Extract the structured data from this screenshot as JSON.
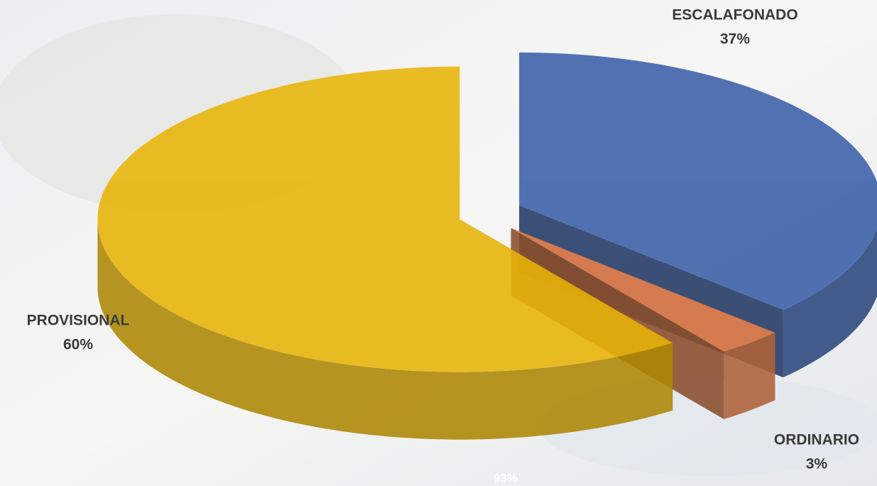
{
  "chart_data": {
    "type": "pie3d",
    "categories": [
      "ESCALAFONADO",
      "ORDINARIO",
      "PROVISIONAL"
    ],
    "values": [
      37,
      3,
      60
    ],
    "value_labels": [
      "37%",
      "3%",
      "60%"
    ],
    "colors": [
      "#3a5fa8",
      "#e8824a",
      "#e8b407"
    ],
    "annotation": "93%"
  }
}
